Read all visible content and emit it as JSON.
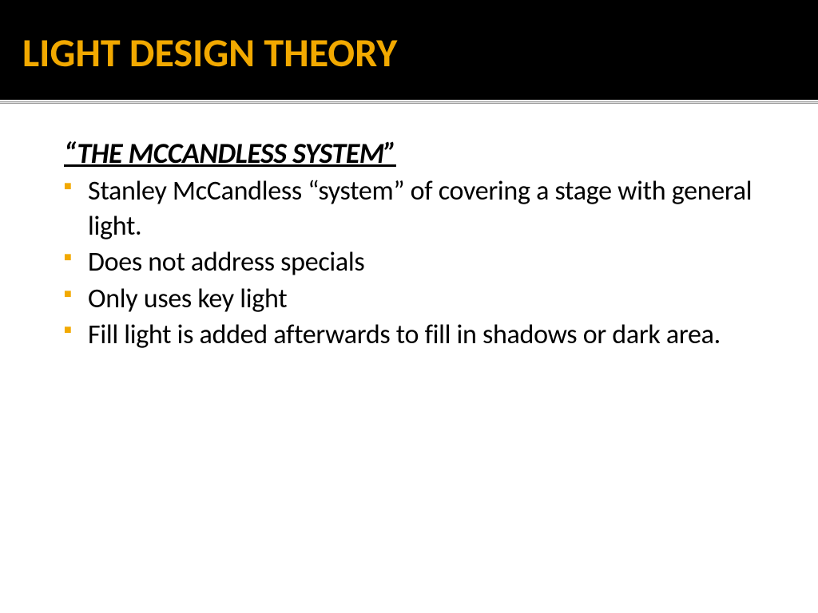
{
  "title": "LIGHT DESIGN THEORY",
  "title_color": "#f2a900",
  "title_bg": "#000000",
  "subtitle": "“THE MCCANDLESS SYSTEM”",
  "bullet_color": "#f2a900",
  "body_color": "#000000",
  "body_fontsize": 34,
  "title_fontsize": 50,
  "subtitle_fontsize": 36,
  "bullets": [
    "Stanley McCandless “system” of covering a stage with general light.",
    "Does not address specials",
    "Only uses key light",
    "Fill light is added afterwards to fill in shadows or dark area."
  ]
}
